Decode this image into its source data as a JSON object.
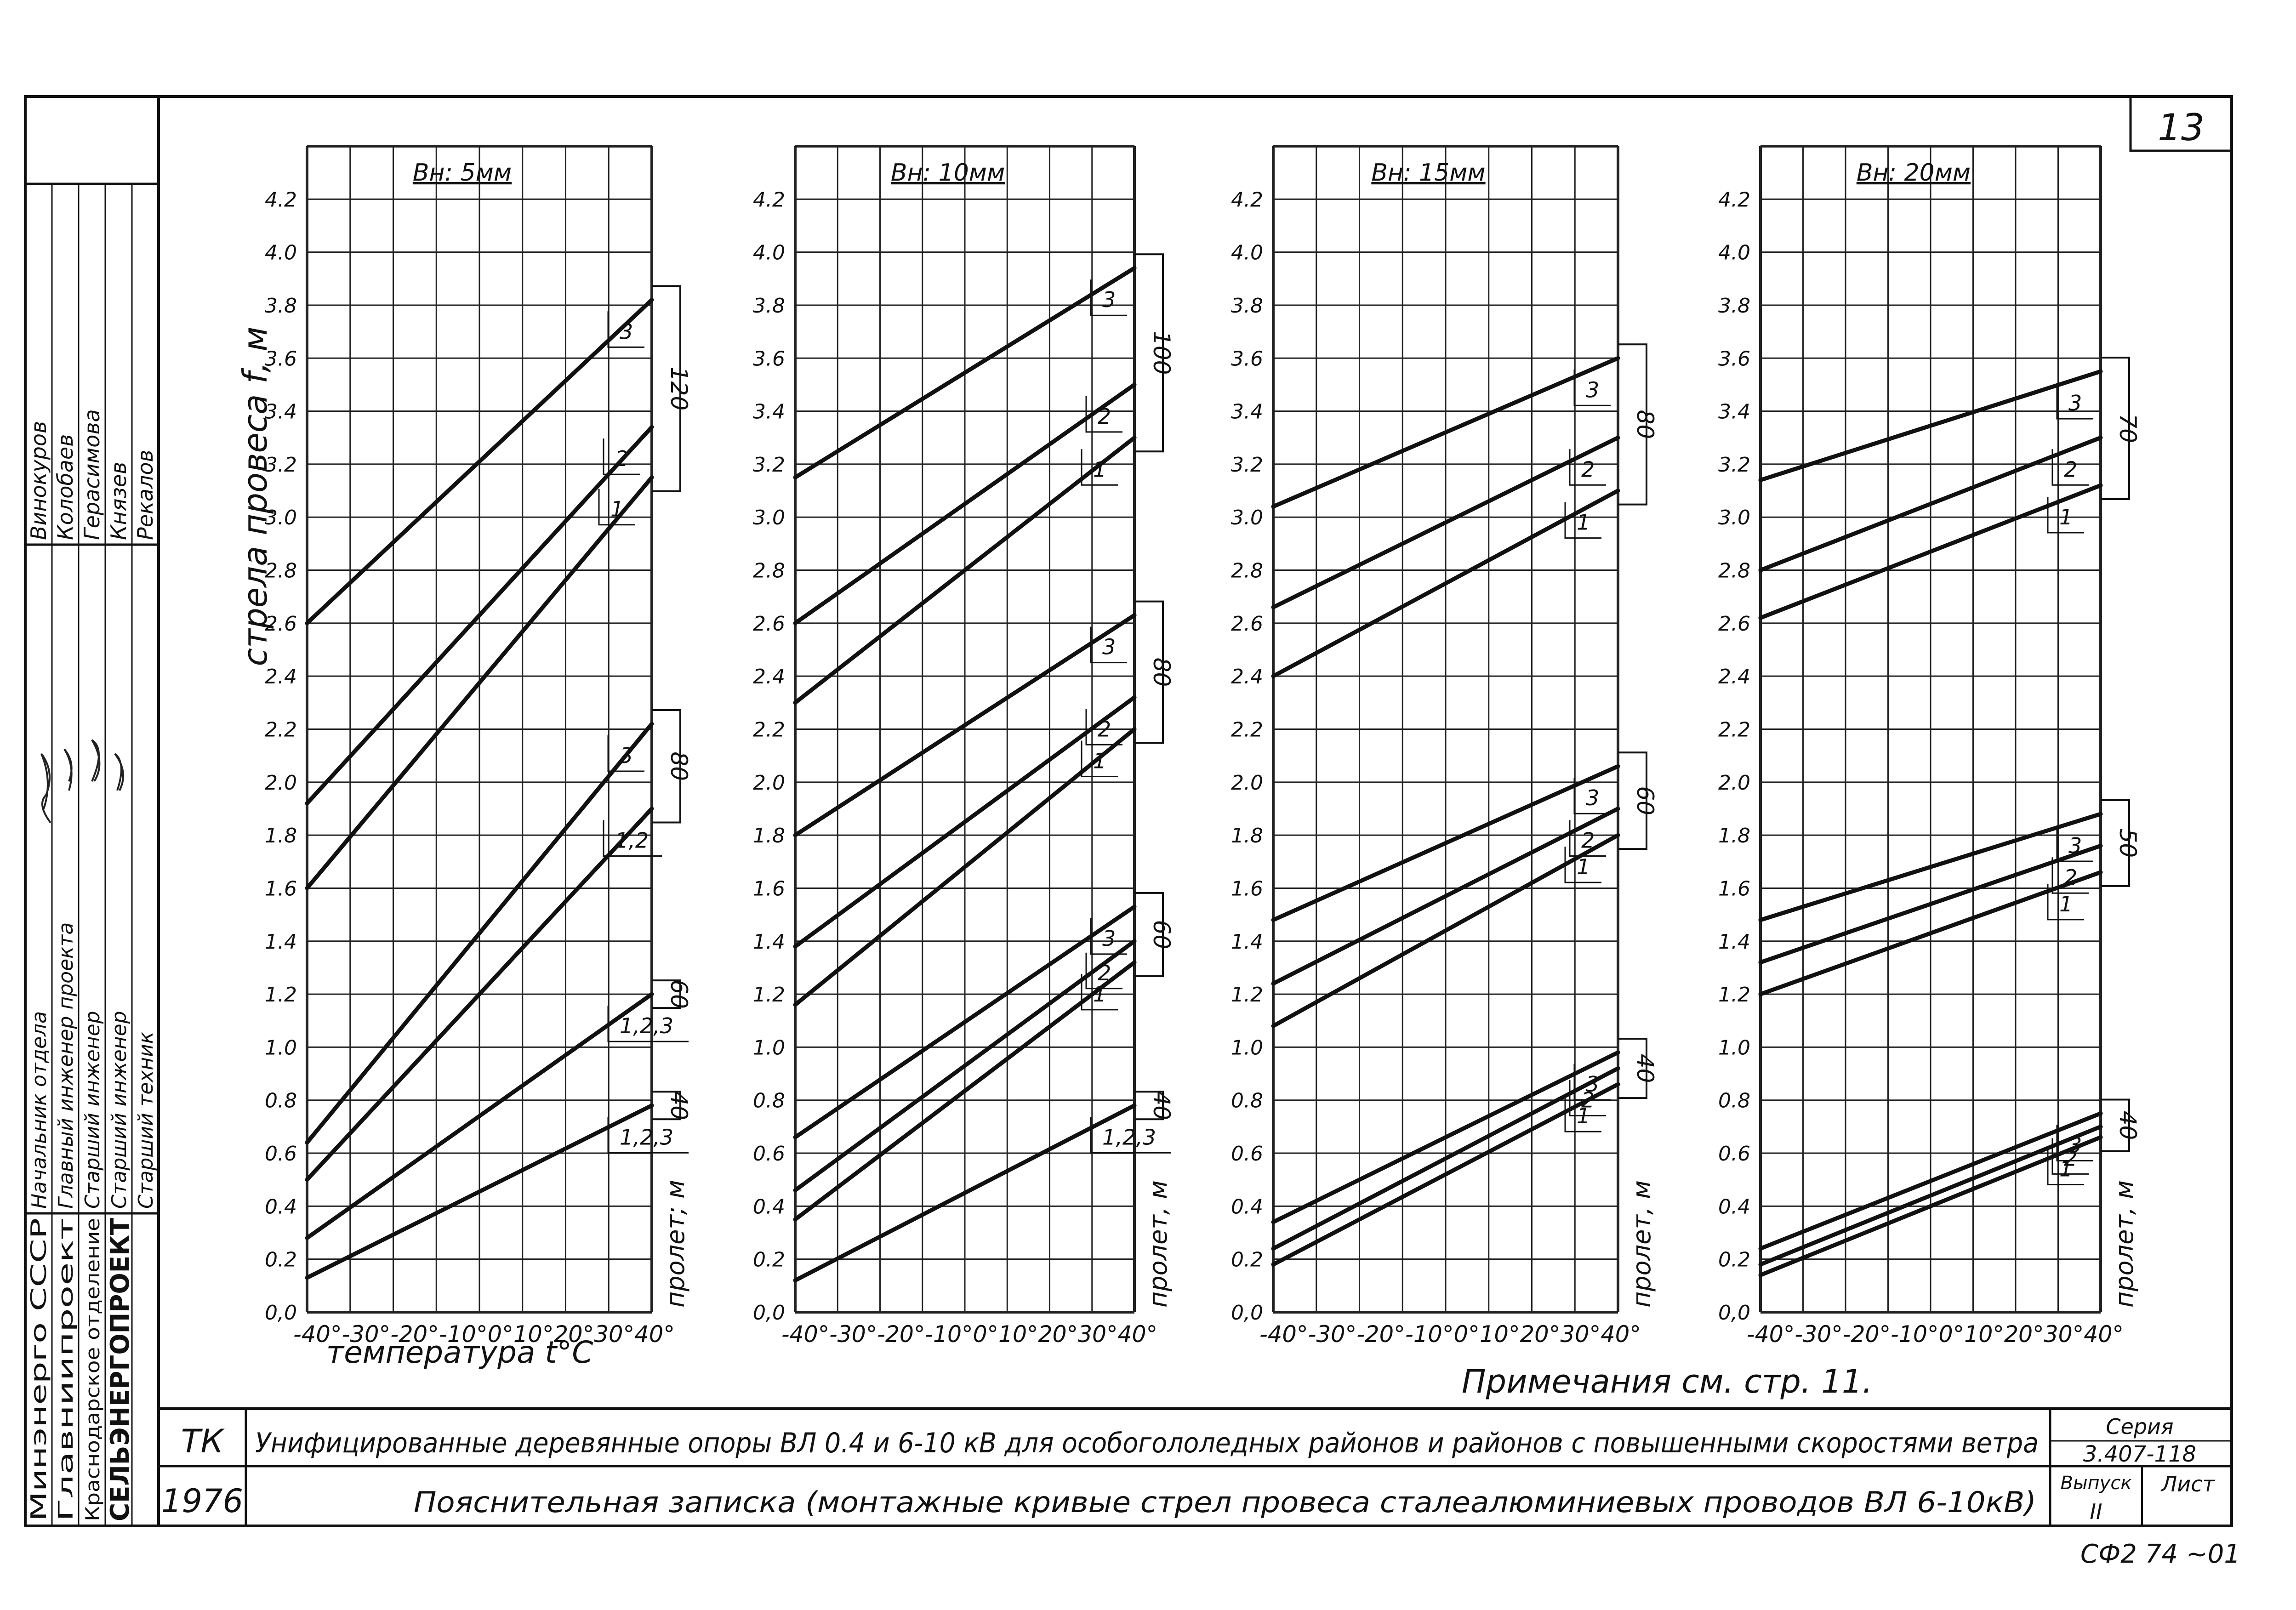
{
  "sheet_number": "13",
  "stamp_code": "СФ2 74 ~01",
  "ylabel": "стрела провеса f, м",
  "xlabel": "температура t°C",
  "note": "Примечания см.   стр. 11.",
  "span_label_1": "пролет; м",
  "span_label_2": "пролет, м",
  "x_ticks": [
    "-40°",
    "-30°",
    "-20°",
    "-10°",
    "0°",
    "10°",
    "20°",
    "30°",
    "40°"
  ],
  "y_ticks": [
    "0,0",
    "0.2",
    "0.4",
    "0.6",
    "0.8",
    "1.0",
    "1.2",
    "1.4",
    "1.6",
    "1.8",
    "2.0",
    "2.2",
    "2.4",
    "2.6",
    "2.8",
    "3.0",
    "3.2",
    "3.4",
    "3.6",
    "3.8",
    "4.0",
    "4.2"
  ],
  "chart_data": [
    {
      "type": "line",
      "title": "Вн: 5мм",
      "x": [
        -40,
        40
      ],
      "xlim": [
        -40,
        40
      ],
      "ylim": [
        0,
        4.4
      ],
      "grid": true,
      "series": [
        {
          "name": "3",
          "span": "120",
          "values": [
            2.6,
            3.82
          ]
        },
        {
          "name": "2",
          "span": "120",
          "values": [
            1.92,
            3.34
          ]
        },
        {
          "name": "1",
          "span": "120",
          "values": [
            1.6,
            3.15
          ]
        },
        {
          "name": "3",
          "span": "80",
          "values": [
            0.64,
            2.22
          ]
        },
        {
          "name": "1,2",
          "span": "80",
          "values": [
            0.5,
            1.9
          ]
        },
        {
          "name": "1,2,3",
          "span": "60",
          "values": [
            0.28,
            1.2
          ]
        },
        {
          "name": "1,2,3",
          "span": "40",
          "values": [
            0.13,
            0.78
          ]
        }
      ],
      "groups": [
        {
          "span": "120",
          "curve_labels": [
            "3",
            "2",
            "1"
          ]
        },
        {
          "span": "80",
          "curve_labels": [
            "3",
            "1,2"
          ]
        },
        {
          "span": "60",
          "curve_labels": [
            "1,2,3"
          ]
        },
        {
          "span": "40",
          "curve_labels": [
            "1,2,3"
          ]
        }
      ]
    },
    {
      "type": "line",
      "title": "Вн: 10мм",
      "x": [
        -40,
        40
      ],
      "xlim": [
        -40,
        40
      ],
      "ylim": [
        0,
        4.4
      ],
      "grid": true,
      "series": [
        {
          "name": "3",
          "span": "100",
          "values": [
            3.15,
            3.94
          ]
        },
        {
          "name": "2",
          "span": "100",
          "values": [
            2.6,
            3.5
          ]
        },
        {
          "name": "1",
          "span": "100",
          "values": [
            2.3,
            3.3
          ]
        },
        {
          "name": "3",
          "span": "80",
          "values": [
            1.8,
            2.63
          ]
        },
        {
          "name": "2",
          "span": "80",
          "values": [
            1.38,
            2.32
          ]
        },
        {
          "name": "1",
          "span": "80",
          "values": [
            1.16,
            2.2
          ]
        },
        {
          "name": "3",
          "span": "60",
          "values": [
            0.66,
            1.53
          ]
        },
        {
          "name": "2",
          "span": "60",
          "values": [
            0.46,
            1.4
          ]
        },
        {
          "name": "1",
          "span": "60",
          "values": [
            0.35,
            1.32
          ]
        },
        {
          "name": "1,2,3",
          "span": "40",
          "values": [
            0.12,
            0.78
          ]
        }
      ],
      "groups": [
        {
          "span": "100",
          "curve_labels": [
            "3",
            "2",
            "1"
          ]
        },
        {
          "span": "80",
          "curve_labels": [
            "3",
            "2",
            "1"
          ]
        },
        {
          "span": "60",
          "curve_labels": [
            "3",
            "2",
            "1"
          ]
        },
        {
          "span": "40",
          "curve_labels": [
            "1,2,3"
          ]
        }
      ]
    },
    {
      "type": "line",
      "title": "Вн: 15мм",
      "x": [
        -40,
        40
      ],
      "xlim": [
        -40,
        40
      ],
      "ylim": [
        0,
        4.4
      ],
      "grid": true,
      "series": [
        {
          "name": "3",
          "span": "80",
          "values": [
            3.04,
            3.6
          ]
        },
        {
          "name": "2",
          "span": "80",
          "values": [
            2.66,
            3.3
          ]
        },
        {
          "name": "1",
          "span": "80",
          "values": [
            2.4,
            3.1
          ]
        },
        {
          "name": "3",
          "span": "60",
          "values": [
            1.48,
            2.06
          ]
        },
        {
          "name": "2",
          "span": "60",
          "values": [
            1.24,
            1.9
          ]
        },
        {
          "name": "1",
          "span": "60",
          "values": [
            1.08,
            1.8
          ]
        },
        {
          "name": "3",
          "span": "40",
          "values": [
            0.34,
            0.98
          ]
        },
        {
          "name": "2",
          "span": "40",
          "values": [
            0.24,
            0.92
          ]
        },
        {
          "name": "1",
          "span": "40",
          "values": [
            0.18,
            0.86
          ]
        }
      ],
      "groups": [
        {
          "span": "80",
          "curve_labels": [
            "3",
            "2",
            "1"
          ]
        },
        {
          "span": "60",
          "curve_labels": [
            "3",
            "2",
            "1"
          ]
        },
        {
          "span": "40",
          "curve_labels": [
            "3",
            "2",
            "1"
          ]
        }
      ]
    },
    {
      "type": "line",
      "title": "Вн: 20мм",
      "x": [
        -40,
        40
      ],
      "xlim": [
        -40,
        40
      ],
      "ylim": [
        0,
        4.4
      ],
      "grid": true,
      "series": [
        {
          "name": "3",
          "span": "70",
          "values": [
            3.14,
            3.55
          ]
        },
        {
          "name": "2",
          "span": "70",
          "values": [
            2.8,
            3.3
          ]
        },
        {
          "name": "1",
          "span": "70",
          "values": [
            2.62,
            3.12
          ]
        },
        {
          "name": "3",
          "span": "50",
          "values": [
            1.48,
            1.88
          ]
        },
        {
          "name": "2",
          "span": "50",
          "values": [
            1.32,
            1.76
          ]
        },
        {
          "name": "1",
          "span": "50",
          "values": [
            1.2,
            1.66
          ]
        },
        {
          "name": "3",
          "span": "40",
          "values": [
            0.24,
            0.75
          ]
        },
        {
          "name": "2",
          "span": "40",
          "values": [
            0.18,
            0.7
          ]
        },
        {
          "name": "1",
          "span": "40",
          "values": [
            0.14,
            0.66
          ]
        }
      ],
      "groups": [
        {
          "span": "70",
          "curve_labels": [
            "3",
            "2",
            "1"
          ]
        },
        {
          "span": "50",
          "curve_labels": [
            "3",
            "2",
            "1"
          ]
        },
        {
          "span": "40",
          "curve_labels": [
            "3",
            "2",
            "1"
          ]
        }
      ]
    }
  ],
  "side_stamp": {
    "roles": [
      "Начальник отдела",
      "Главный инженер проекта",
      "Старший инженер",
      "Старший инженер",
      "Старший техник"
    ],
    "names": [
      "Винокуров",
      "Колобаев",
      "Герасимова",
      "Князев",
      "Рекалов"
    ],
    "org": [
      "Минэнерго СССР",
      "Главниипроект",
      "Краснодарское отделение",
      "СЕЛЬЭНЕРГОПРОЕКТ"
    ]
  },
  "title_block": {
    "code": "ТК",
    "year": "1976",
    "title_line_1": "Унифицированные деревянные опоры ВЛ 0.4 и 6-10 кВ  для  особогололедных районов и районов с повышенными скоростями  ветра",
    "title_line_2": "Пояснительная   записка   (монтажные кривые стрел провеса сталеалюминиевых проводов ВЛ 6-10кВ)",
    "series_label": "Серия",
    "series_value": "3.407-118",
    "issue_label": "Выпуск",
    "issue_value": "II",
    "sheet_label": "Лист"
  }
}
